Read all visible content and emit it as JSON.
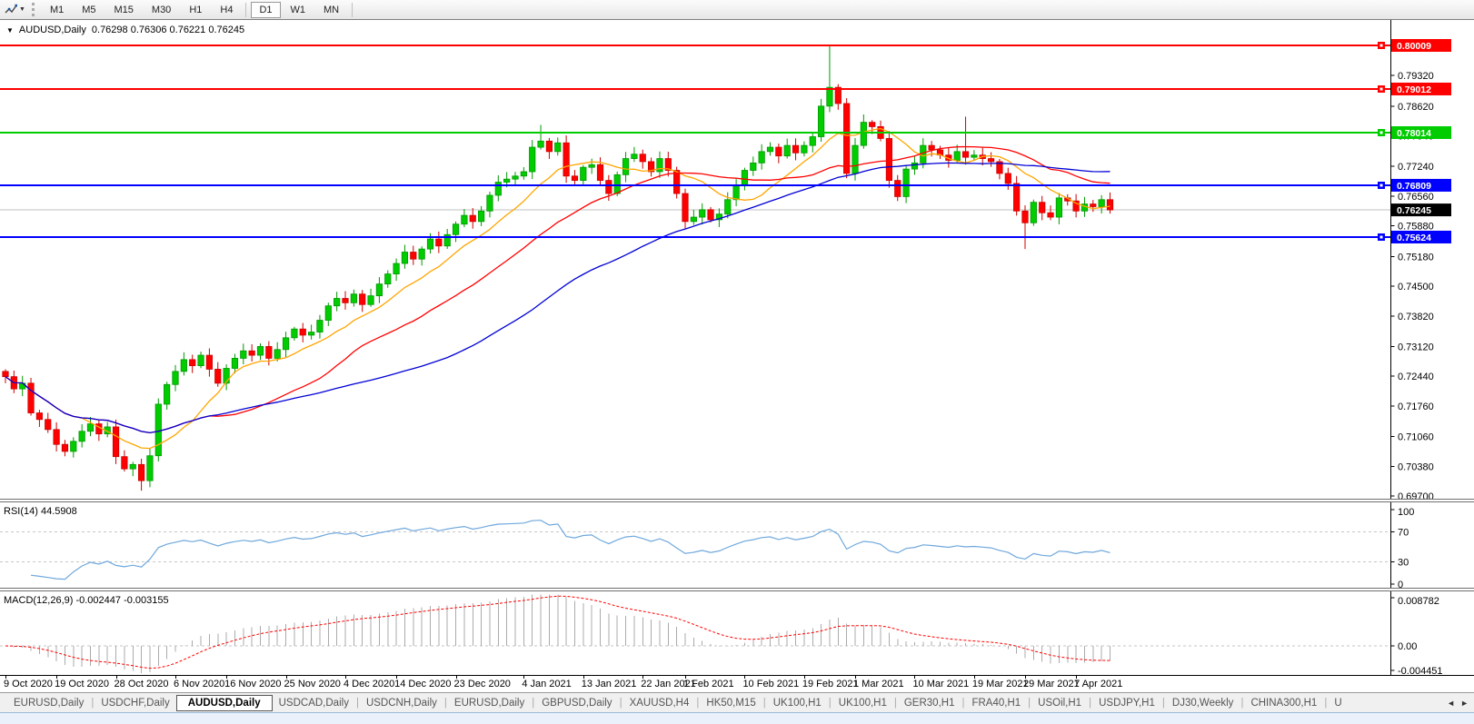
{
  "toolbar": {
    "timeframes": [
      "M1",
      "M5",
      "M15",
      "M30",
      "H1",
      "H4",
      "D1",
      "W1",
      "MN"
    ],
    "active_timeframe": "D1",
    "icons": [
      "chart-cursor-icon",
      "dropdown-arrow-icon"
    ]
  },
  "chart": {
    "title_symbol": "AUDUSD,Daily",
    "title_ohlc": "0.76298 0.76306 0.76221 0.76245",
    "price_axis": {
      "ticks": [
        "0.79320",
        "0.78620",
        "0.77940",
        "0.77240",
        "0.76560",
        "0.75880",
        "0.75180",
        "0.74500",
        "0.73820",
        "0.73120",
        "0.72440",
        "0.71760",
        "0.71060",
        "0.70380",
        "0.69700"
      ],
      "current_price": "0.76245"
    },
    "hlines": [
      {
        "price": 0.80009,
        "label": "0.80009",
        "color": "#FF0000"
      },
      {
        "price": 0.79012,
        "label": "0.79012",
        "color": "#FF0000"
      },
      {
        "price": 0.78014,
        "label": "0.78014",
        "color": "#00CC00"
      },
      {
        "price": 0.76809,
        "label": "0.76809",
        "color": "#0000FF"
      },
      {
        "price": 0.75624,
        "label": "0.75624",
        "color": "#0000FF"
      }
    ]
  },
  "chart_data": {
    "type": "candlestick",
    "symbol": "AUDUSD",
    "timeframe": "Daily",
    "ohlc_display": {
      "open": 0.76298,
      "high": 0.76306,
      "low": 0.76221,
      "close": 0.76245
    },
    "y_axis": {
      "price_top": 0.80591,
      "price_bottom": 0.69637
    },
    "first_open": 0.7255,
    "closes": [
      0.7243,
      0.7215,
      0.7228,
      0.716,
      0.7145,
      0.7122,
      0.7088,
      0.7072,
      0.7095,
      0.7118,
      0.7135,
      0.7112,
      0.7128,
      0.706,
      0.7032,
      0.7042,
      0.7005,
      0.7062,
      0.718,
      0.7225,
      0.7255,
      0.7282,
      0.7268,
      0.7292,
      0.726,
      0.7228,
      0.7262,
      0.7285,
      0.7302,
      0.7292,
      0.7312,
      0.7285,
      0.7305,
      0.7332,
      0.7352,
      0.7338,
      0.7345,
      0.7372,
      0.7405,
      0.7422,
      0.7412,
      0.7432,
      0.7408,
      0.7428,
      0.7455,
      0.7478,
      0.7502,
      0.7528,
      0.7512,
      0.7535,
      0.7558,
      0.7542,
      0.7568,
      0.7592,
      0.7612,
      0.7598,
      0.7622,
      0.7658,
      0.7688,
      0.7695,
      0.7702,
      0.7712,
      0.7768,
      0.7782,
      0.7758,
      0.7778,
      0.7702,
      0.7692,
      0.7722,
      0.7728,
      0.7692,
      0.7662,
      0.7705,
      0.7742,
      0.7752,
      0.7735,
      0.7712,
      0.7742,
      0.7715,
      0.7662,
      0.7598,
      0.7608,
      0.7625,
      0.7602,
      0.7615,
      0.7648,
      0.7682,
      0.7715,
      0.7732,
      0.7758,
      0.7768,
      0.7748,
      0.7772,
      0.7755,
      0.7772,
      0.7792,
      0.7862,
      0.7905,
      0.7868,
      0.7708,
      0.7772,
      0.7825,
      0.7815,
      0.7788,
      0.7692,
      0.7655,
      0.7718,
      0.7732,
      0.7772,
      0.7762,
      0.775,
      0.7738,
      0.7758,
      0.7745,
      0.775,
      0.7742,
      0.7735,
      0.7708,
      0.7685,
      0.7622,
      0.7595,
      0.7642,
      0.7618,
      0.7608,
      0.7652,
      0.7645,
      0.7622,
      0.7638,
      0.7632,
      0.7648,
      0.76245
    ],
    "wick_overrides": {
      "16": {
        "low": 0.6982
      },
      "63": {
        "high": 0.7819
      },
      "97": {
        "high": 0.80009
      },
      "101": {
        "high": 0.7843
      },
      "113": {
        "high": 0.7838
      },
      "120": {
        "low": 0.7535
      }
    },
    "x_ticks": [
      {
        "label": "9 Oct 2020",
        "index": 0
      },
      {
        "label": "19 Oct 2020",
        "index": 6
      },
      {
        "label": "28 Oct 2020",
        "index": 13
      },
      {
        "label": "6 Nov 2020",
        "index": 20
      },
      {
        "label": "16 Nov 2020",
        "index": 26
      },
      {
        "label": "25 Nov 2020",
        "index": 33
      },
      {
        "label": "4 Dec 2020",
        "index": 40
      },
      {
        "label": "14 Dec 2020",
        "index": 46
      },
      {
        "label": "23 Dec 2020",
        "index": 53
      },
      {
        "label": "4 Jan 2021",
        "index": 61
      },
      {
        "label": "13 Jan 2021",
        "index": 68
      },
      {
        "label": "22 Jan 2021",
        "index": 75
      },
      {
        "label": "1 Feb 2021",
        "index": 80
      },
      {
        "label": "10 Feb 2021",
        "index": 87
      },
      {
        "label": "19 Feb 2021",
        "index": 94
      },
      {
        "label": "1 Mar 2021",
        "index": 100
      },
      {
        "label": "10 Mar 2021",
        "index": 107
      },
      {
        "label": "19 Mar 2021",
        "index": 114
      },
      {
        "label": "29 Mar 2021",
        "index": 120
      },
      {
        "label": "7 Apr 2021",
        "index": 126
      }
    ],
    "indicators": {
      "moving_averages": [
        {
          "period": 10,
          "color": "#FFA500"
        },
        {
          "period": 25,
          "color": "#FF0000"
        },
        {
          "period": 50,
          "color": "#0000D6"
        }
      ],
      "rsi": {
        "label": "RSI(14) 44.5908",
        "period": 14,
        "current_value": 44.5908,
        "levels": [
          70,
          30
        ],
        "color": "#6FA8DC",
        "axis_labels": [
          {
            "label": "100",
            "value": 100
          },
          {
            "label": "70",
            "value": 70
          },
          {
            "label": "30",
            "value": 30
          },
          {
            "label": "0",
            "value": 0
          }
        ]
      },
      "macd": {
        "label": "MACD(12,26,9) -0.002447 -0.003155",
        "fast": 12,
        "slow": 26,
        "signal": 9,
        "main_value": -0.002447,
        "signal_value": -0.003155,
        "histogram_color": "#ABABAB",
        "signal_color": "#FF0000",
        "axis_labels": [
          {
            "label": "0.008782",
            "value": 0.008782
          },
          {
            "label": "0.00",
            "value": 0
          },
          {
            "label": "-0.004451",
            "value": -0.004451
          }
        ]
      }
    }
  },
  "colors": {
    "bull": "#00CC00",
    "bull_border": "#009900",
    "bear": "#FF0000",
    "bear_border": "#CC0000",
    "current_price_line": "#C0C0C0",
    "current_price_bg": "#000000",
    "level_dash": "#C6C6C6",
    "axis_line": "#000000"
  },
  "bottom_tabs": {
    "tabs": [
      "EURUSD,Daily",
      "USDCHF,Daily",
      "AUDUSD,Daily",
      "USDCAD,Daily",
      "USDCNH,Daily",
      "EURUSD,Daily",
      "GBPUSD,Daily",
      "XAUUSD,H4",
      "HK50,M15",
      "UK100,H1",
      "UK100,H1",
      "GER30,H1",
      "FRA40,H1",
      "USOil,H1",
      "USDJPY,H1",
      "DJ30,Weekly",
      "CHINA300,H1",
      "U"
    ],
    "active_index": 2,
    "scroll_left": "◄",
    "scroll_right": "►"
  }
}
